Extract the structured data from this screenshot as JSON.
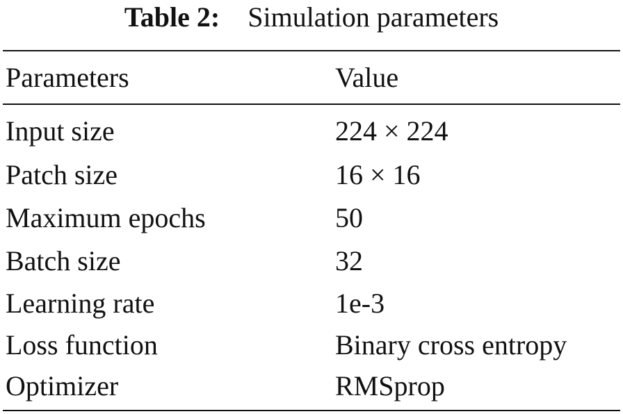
{
  "caption": {
    "label": "Table 2:",
    "title": "Simulation parameters"
  },
  "table": {
    "headers": {
      "parameter": "Parameters",
      "value": "Value"
    },
    "rows": [
      {
        "parameter": "Input size",
        "value": "224 × 224"
      },
      {
        "parameter": "Patch size",
        "value": "16 × 16"
      },
      {
        "parameter": "Maximum epochs",
        "value": "50"
      },
      {
        "parameter": "Batch size",
        "value": "32"
      },
      {
        "parameter": "Learning rate",
        "value": "1e-3"
      },
      {
        "parameter": "Loss function",
        "value": "Binary cross entropy"
      },
      {
        "parameter": "Optimizer",
        "value": "RMSprop"
      }
    ]
  }
}
